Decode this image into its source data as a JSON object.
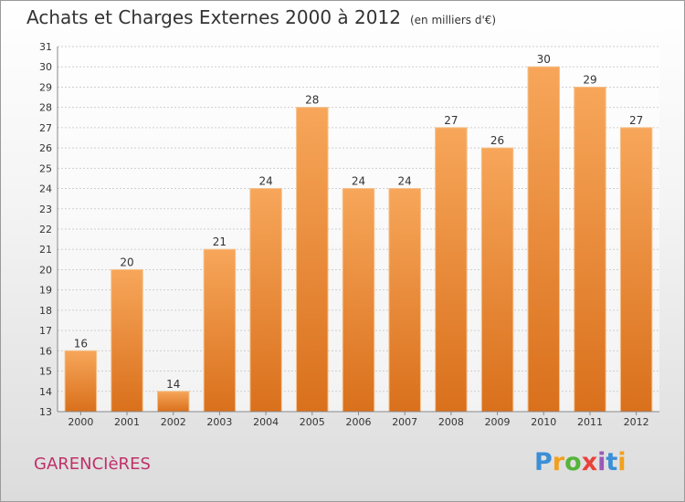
{
  "header": {
    "title": "Achats et Charges Externes 2000 à 2012",
    "unit": "(en milliers d'€)"
  },
  "footer": {
    "place": "GARENCIèRES",
    "brand": "Proxiti",
    "brand_colors": [
      "#3b8fd6",
      "#f2a01e",
      "#55b43a",
      "#e8433a",
      "#9b59b6"
    ]
  },
  "chart_data": {
    "type": "bar",
    "title": "Achats et Charges Externes 2000 à 2012",
    "subtitle": "(en milliers d'€)",
    "xlabel": "",
    "ylabel": "",
    "categories": [
      "2000",
      "2001",
      "2002",
      "2003",
      "2004",
      "2005",
      "2006",
      "2007",
      "2008",
      "2009",
      "2010",
      "2011",
      "2012"
    ],
    "values": [
      16,
      20,
      14,
      21,
      24,
      28,
      24,
      24,
      27,
      26,
      30,
      29,
      27
    ],
    "ylim": [
      13,
      31
    ],
    "yticks": [
      13,
      14,
      15,
      16,
      17,
      18,
      19,
      20,
      21,
      22,
      23,
      24,
      25,
      26,
      27,
      28,
      29,
      30,
      31
    ],
    "grid": true,
    "bar_color": "#f0963a",
    "data_labels": true
  }
}
